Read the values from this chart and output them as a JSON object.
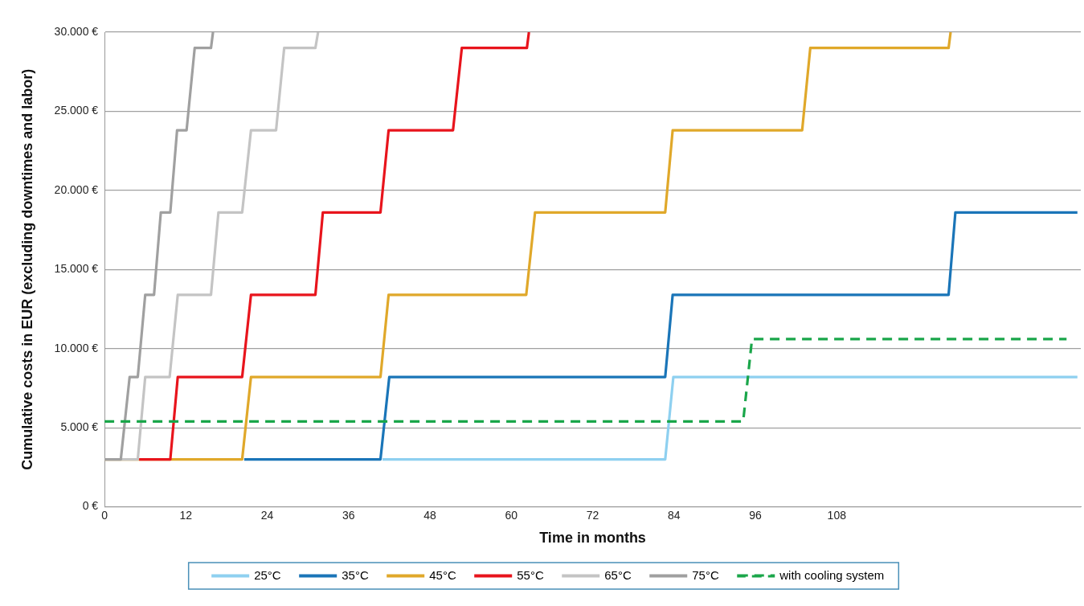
{
  "chart_data": {
    "type": "line",
    "xlabel": "Time in months",
    "ylabel": "Cumulative costs in EUR (excluding downtimes and labor)",
    "xlim": [
      0,
      144
    ],
    "xticks": [
      0,
      12,
      24,
      36,
      48,
      60,
      72,
      84,
      96,
      108
    ],
    "ylim": [
      0,
      30000
    ],
    "yticks": [
      {
        "value": 0,
        "label": "0 €"
      },
      {
        "value": 5000,
        "label": "5.000 €"
      },
      {
        "value": 10000,
        "label": "10.000 €"
      },
      {
        "value": 15000,
        "label": "15.000 €"
      },
      {
        "value": 20000,
        "label": "20.000 €"
      },
      {
        "value": 25000,
        "label": "25.000 €"
      },
      {
        "value": 30000,
        "label": "30.000 €"
      }
    ],
    "grid": "y",
    "legend": "bottom",
    "marker": "none",
    "series": [
      {
        "name": "25°C",
        "color": "#8ed0f0",
        "x": [
          41.0,
          82.7,
          83.9,
          143.5
        ],
        "values": [
          3000,
          3000,
          8200,
          8200
        ]
      },
      {
        "name": "35°C",
        "color": "#1a75b8",
        "x": [
          20.6,
          40.7,
          42.0,
          82.7,
          83.8,
          124.5,
          125.5,
          143.5
        ],
        "values": [
          3000,
          3000,
          8200,
          8200,
          13400,
          13400,
          18600,
          18600
        ]
      },
      {
        "name": "45°C",
        "color": "#e0a82a",
        "x": [
          0,
          20.3,
          21.6,
          40.7,
          41.9,
          62.2,
          63.5,
          82.7,
          83.8,
          102.9,
          104.1,
          124.5,
          124.8
        ],
        "values": [
          3000,
          3000,
          8200,
          8200,
          13400,
          13400,
          18600,
          18600,
          23800,
          23800,
          29000,
          29000,
          30000
        ]
      },
      {
        "name": "55°C",
        "color": "#e8141c",
        "x": [
          5.1,
          9.7,
          10.8,
          20.3,
          21.6,
          31.1,
          32.2,
          40.7,
          41.9,
          51.4,
          52.7,
          62.3,
          62.6
        ],
        "values": [
          3000,
          3000,
          8200,
          8200,
          13400,
          13400,
          18600,
          18600,
          23800,
          23800,
          29000,
          29000,
          30000
        ]
      },
      {
        "name": "65°C",
        "color": "#c4c4c4",
        "x": [
          0,
          4.9,
          6.0,
          9.6,
          10.8,
          15.7,
          16.8,
          20.3,
          21.6,
          25.3,
          26.5,
          31.1,
          31.5
        ],
        "values": [
          3000,
          3000,
          8200,
          8200,
          13400,
          13400,
          18600,
          18600,
          23800,
          23800,
          29000,
          29000,
          30000
        ]
      },
      {
        "name": "75°C",
        "color": "#a0a0a0",
        "x": [
          0,
          2.4,
          3.7,
          4.9,
          6.0,
          7.3,
          8.3,
          9.7,
          10.7,
          12.1,
          13.3,
          15.7,
          16.0
        ],
        "values": [
          3000,
          3000,
          8200,
          8200,
          13400,
          13400,
          18600,
          18600,
          23800,
          23800,
          29000,
          29000,
          30000
        ]
      },
      {
        "name": "with cooling system",
        "color": "#1aa64a",
        "line_style": "dashed",
        "x": [
          0,
          94.2,
          95.5,
          141.9
        ],
        "values": [
          5400,
          5400,
          10600,
          10600
        ]
      }
    ]
  }
}
